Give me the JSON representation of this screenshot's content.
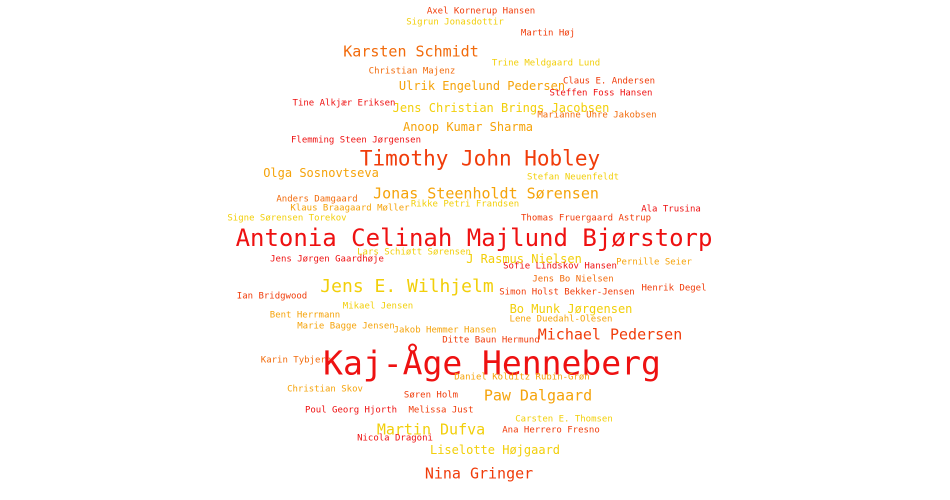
{
  "palette": {
    "red": "#ee1111",
    "red_orange": "#f03c0a",
    "orange": "#f26b0c",
    "amber": "#f5a30a",
    "yellow": "#f2cf0a"
  },
  "words": [
    {
      "text": "Axel Kornerup Hansen",
      "color": "red_orange"
    },
    {
      "text": "Sigrun Jonasdottir",
      "color": "yellow"
    },
    {
      "text": "Martin Høj",
      "color": "red_orange"
    },
    {
      "text": "Karsten Schmidt",
      "color": "orange"
    },
    {
      "text": "Trine Meldgaard Lund",
      "color": "yellow"
    },
    {
      "text": "Christian Majenz",
      "color": "orange"
    },
    {
      "text": "Claus E. Andersen",
      "color": "red_orange"
    },
    {
      "text": "Ulrik Engelund Pedersen",
      "color": "amber"
    },
    {
      "text": "Steffen Foss Hansen",
      "color": "red"
    },
    {
      "text": "Tine Alkjær Eriksen",
      "color": "red"
    },
    {
      "text": "Jens Christian Brings Jacobsen",
      "color": "yellow"
    },
    {
      "text": "Marianne Uhre Jakobsen",
      "color": "orange"
    },
    {
      "text": "Anoop Kumar Sharma",
      "color": "amber"
    },
    {
      "text": "Flemming Steen Jørgensen",
      "color": "red"
    },
    {
      "text": "Timothy John Hobley",
      "color": "red_orange"
    },
    {
      "text": "Olga Sosnovtseva",
      "color": "amber"
    },
    {
      "text": "Stefan Neuenfeldt",
      "color": "yellow"
    },
    {
      "text": "Jonas Steenholdt Sørensen",
      "color": "amber"
    },
    {
      "text": "Anders Damgaard",
      "color": "orange"
    },
    {
      "text": "Klaus Braagaard Møller",
      "color": "amber"
    },
    {
      "text": "Rikke Petri Frandsen",
      "color": "yellow"
    },
    {
      "text": "Ala Trusina",
      "color": "red"
    },
    {
      "text": "Signe Sørensen Torekov",
      "color": "yellow"
    },
    {
      "text": "Thomas Fruergaard Astrup",
      "color": "red_orange"
    },
    {
      "text": "Antonia Celinah Majlund Bjørstorp",
      "color": "red"
    },
    {
      "text": "Lars Schiøtt Sørensen",
      "color": "yellow"
    },
    {
      "text": "Jens Jørgen Gaardhøje",
      "color": "red"
    },
    {
      "text": "J Rasmus Nielsen",
      "color": "yellow"
    },
    {
      "text": "Sofie Lindskov Hansen",
      "color": "red"
    },
    {
      "text": "Pernille Seier",
      "color": "amber"
    },
    {
      "text": "Jens Bo Nielsen",
      "color": "orange"
    },
    {
      "text": "Jens E. Wilhjelm",
      "color": "yellow"
    },
    {
      "text": "Simon Holst Bekker-Jensen",
      "color": "red_orange"
    },
    {
      "text": "Henrik Degel",
      "color": "red_orange"
    },
    {
      "text": "Ian Bridgwood",
      "color": "red_orange"
    },
    {
      "text": "Mikael Jensen",
      "color": "yellow"
    },
    {
      "text": "Bo Munk Jørgensen",
      "color": "yellow"
    },
    {
      "text": "Bent Herrmann",
      "color": "amber"
    },
    {
      "text": "Lene Duedahl-Olesen",
      "color": "amber"
    },
    {
      "text": "Marie Bagge Jensen",
      "color": "amber"
    },
    {
      "text": "Jakob Hemmer Hansen",
      "color": "amber"
    },
    {
      "text": "Michael Pedersen",
      "color": "red_orange"
    },
    {
      "text": "Ditte Baun Hermund",
      "color": "red_orange"
    },
    {
      "text": "Karin Tybjerg",
      "color": "orange"
    },
    {
      "text": "Kaj-Åge Henneberg",
      "color": "red"
    },
    {
      "text": "Daniel Kolditz Rubin-Grøn",
      "color": "amber"
    },
    {
      "text": "Christian Skov",
      "color": "amber"
    },
    {
      "text": "Paw Dalgaard",
      "color": "amber"
    },
    {
      "text": "Søren Holm",
      "color": "red_orange"
    },
    {
      "text": "Poul Georg Hjorth",
      "color": "red"
    },
    {
      "text": "Melissa Just",
      "color": "red_orange"
    },
    {
      "text": "Carsten E. Thomsen",
      "color": "yellow"
    },
    {
      "text": "Martin Dufva",
      "color": "yellow"
    },
    {
      "text": "Ana Herrero Fresno",
      "color": "red_orange"
    },
    {
      "text": "Nicola Dragoni",
      "color": "red"
    },
    {
      "text": "Liselotte Højgaard",
      "color": "yellow"
    },
    {
      "text": "Nina Gringer",
      "color": "red_orange"
    }
  ]
}
